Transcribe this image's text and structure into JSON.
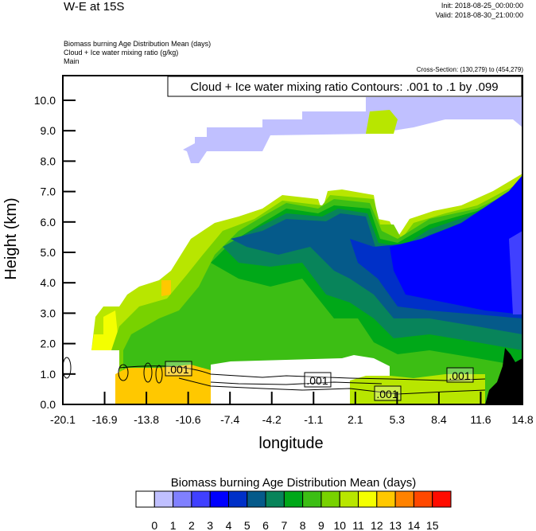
{
  "header": {
    "title": "W-E at 15S",
    "init": "Init: 2018-08-25_00:00:00",
    "valid": "Valid: 2018-08-30_21:00:00",
    "field1": "Biomass burning Age Distribution Mean   (days)",
    "field2": "Cloud + Ice water mixing ratio   (g/kg)",
    "field3": "Main",
    "cross_section": "Cross-Section: (130,279) to (454,279)"
  },
  "chart_data": {
    "type": "heatmap",
    "title": "Cloud + Ice water mixing ratio Contours: .001 to .1 by .099",
    "xlabel": "longitude",
    "ylabel": "Height (km)",
    "xlim": [
      -20.1,
      14.8
    ],
    "ylim": [
      0,
      10.8
    ],
    "x_ticks": [
      "-20.1",
      "-16.9",
      "-13.8",
      "-10.6",
      "-7.4",
      "-4.2",
      "-1.1",
      "2.1",
      "5.3",
      "8.4",
      "11.6",
      "14.8"
    ],
    "y_ticks": [
      "0.0",
      "1.0",
      "2.0",
      "3.0",
      "4.0",
      "5.0",
      "6.0",
      "7.0",
      "8.0",
      "9.0",
      "10.0"
    ],
    "contour_labels": [
      ".001",
      ".001",
      ".001",
      ".001"
    ],
    "colorbar": {
      "title": "Biomass burning Age Distribution Mean  (days)",
      "labels": [
        "0",
        "1",
        "2",
        "3",
        "4",
        "5",
        "6",
        "7",
        "8",
        "9",
        "10",
        "11",
        "12",
        "13",
        "14",
        "15"
      ],
      "colors": [
        "#ffffff",
        "#c0c0ff",
        "#8080ff",
        "#4040ff",
        "#0000ff",
        "#0030c8",
        "#055a8a",
        "#08845a",
        "#00a818",
        "#3cbe14",
        "#78d200",
        "#b8e600",
        "#f4ff00",
        "#ffc800",
        "#ff8200",
        "#ff4800",
        "#ff0c00"
      ]
    }
  }
}
